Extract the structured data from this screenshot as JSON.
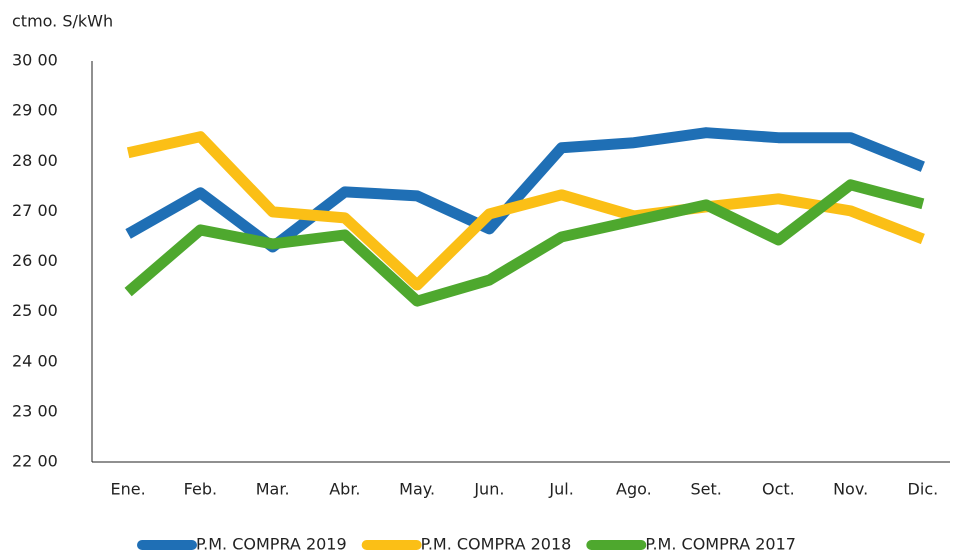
{
  "chart_data": {
    "type": "line",
    "y_label": "ctmo. S/kWh",
    "categories": [
      "Ene.",
      "Feb.",
      "Mar.",
      "Abr.",
      "May.",
      "Jun.",
      "Jul.",
      "Ago.",
      "Set.",
      "Oct.",
      "Nov.",
      "Dic."
    ],
    "series": [
      {
        "name": "P.M. COMPRA 2019",
        "color": "#1f6fb5",
        "values": [
          26.55,
          27.37,
          26.29,
          27.39,
          27.31,
          26.65,
          28.27,
          28.37,
          28.57,
          28.47,
          28.47,
          27.89
        ]
      },
      {
        "name": "P.M. COMPRA 2018",
        "color": "#fbbf16",
        "values": [
          28.17,
          28.49,
          26.99,
          26.87,
          25.53,
          26.95,
          27.33,
          26.91,
          27.09,
          27.25,
          27.01,
          26.45
        ]
      },
      {
        "name": "P.M. COMPRA 2017",
        "color": "#4ea82e",
        "values": [
          25.39,
          26.63,
          26.35,
          26.53,
          25.21,
          25.63,
          26.49,
          26.81,
          27.13,
          26.43,
          27.53,
          27.15
        ]
      }
    ],
    "ylim": [
      22,
      30
    ],
    "yticks": [
      {
        "value": 22,
        "label": "22 00"
      },
      {
        "value": 23,
        "label": "23 00"
      },
      {
        "value": 24,
        "label": "24 00"
      },
      {
        "value": 25,
        "label": "25 00"
      },
      {
        "value": 26,
        "label": "26 00"
      },
      {
        "value": 27,
        "label": "27 00"
      },
      {
        "value": 28,
        "label": "28 00"
      },
      {
        "value": 29,
        "label": "29 00"
      },
      {
        "value": 30,
        "label": "30 00"
      }
    ],
    "grid": false,
    "legend": "bottom"
  }
}
